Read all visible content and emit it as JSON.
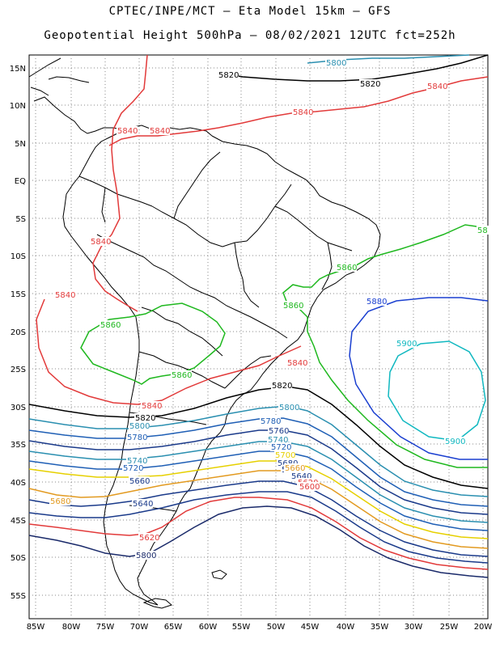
{
  "header": {
    "line1": "CPTEC/INPE/MCT –  Eta Model 15km – GFS",
    "line2": "Geopotential Height 500hPa – 08/02/2021 12UTC fct=252h"
  },
  "map": {
    "lat_labels": [
      "15N",
      "10N",
      "5N",
      "EQ",
      "5S",
      "10S",
      "15S",
      "20S",
      "25S",
      "30S",
      "35S",
      "40S",
      "45S",
      "50S",
      "55S"
    ],
    "lon_labels": [
      "85W",
      "80W",
      "75W",
      "70W",
      "65W",
      "60W",
      "55W",
      "50W",
      "45W",
      "40W",
      "35W",
      "30W",
      "25W",
      "20W"
    ],
    "grid": "dotted",
    "contour_labels": [
      {
        "text": "5800",
        "color": "#2a8fb0"
      },
      {
        "text": "5820",
        "color": "#000000"
      },
      {
        "text": "5820",
        "color": "#000000"
      },
      {
        "text": "5840",
        "color": "#e23a3a"
      },
      {
        "text": "5840",
        "color": "#e23a3a"
      },
      {
        "text": "5840",
        "color": "#e23a3a"
      },
      {
        "text": "5840",
        "color": "#e23a3a"
      },
      {
        "text": "5840",
        "color": "#e23a3a"
      },
      {
        "text": "5840",
        "color": "#e23a3a"
      },
      {
        "text": "5840",
        "color": "#e23a3a"
      },
      {
        "text": "5840",
        "color": "#e23a3a"
      },
      {
        "text": "58",
        "color": "#1fb81f"
      },
      {
        "text": "5860",
        "color": "#1fb81f"
      },
      {
        "text": "5860",
        "color": "#1fb81f"
      },
      {
        "text": "5860",
        "color": "#1fb81f"
      },
      {
        "text": "5860",
        "color": "#1fb81f"
      },
      {
        "text": "5880",
        "color": "#1a3fd0"
      },
      {
        "text": "5900",
        "color": "#10b8c0"
      },
      {
        "text": "5900",
        "color": "#10b8c0"
      },
      {
        "text": "5820",
        "color": "#000000"
      },
      {
        "text": "5820",
        "color": "#000000"
      },
      {
        "text": "5800",
        "color": "#2a8fb0"
      },
      {
        "text": "5800",
        "color": "#2a8fb0"
      },
      {
        "text": "5780",
        "color": "#1f5fb5"
      },
      {
        "text": "5780",
        "color": "#1f5fb5"
      },
      {
        "text": "5760",
        "color": "#1a3a8a"
      },
      {
        "text": "5740",
        "color": "#2a8fb0"
      },
      {
        "text": "5740",
        "color": "#2a8fb0"
      },
      {
        "text": "5720",
        "color": "#1f5fb5"
      },
      {
        "text": "5720",
        "color": "#1f5fb5"
      },
      {
        "text": "5700",
        "color": "#e6d000"
      },
      {
        "text": "5680",
        "color": "#1a3a8a"
      },
      {
        "text": "5680",
        "color": "#1a3a8a"
      },
      {
        "text": "5660",
        "color": "#1a3a8a"
      },
      {
        "text": "5660",
        "color": "#e29a20"
      },
      {
        "text": "5640",
        "color": "#1a3a8a"
      },
      {
        "text": "5640",
        "color": "#1a3a8a"
      },
      {
        "text": "5620",
        "color": "#e23a3a"
      },
      {
        "text": "5620",
        "color": "#e23a3a"
      },
      {
        "text": "5600",
        "color": "#e23a3a"
      },
      {
        "text": "5680",
        "color": "#e29a20"
      },
      {
        "text": "5800",
        "color": "#1a2a6a"
      }
    ]
  }
}
